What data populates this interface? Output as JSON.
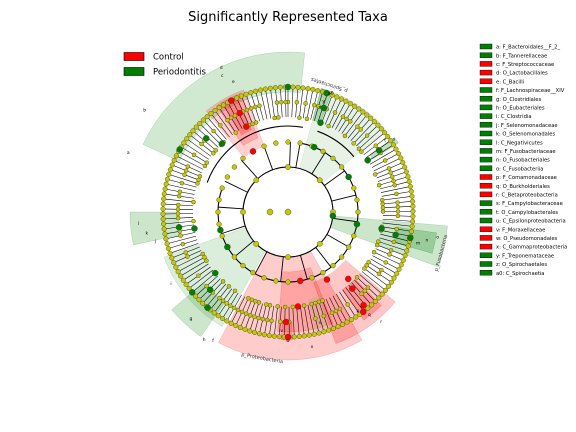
{
  "title": "Significantly Represented Taxa",
  "groups": [
    {
      "name": "Control",
      "color": "#ff0000"
    },
    {
      "name": "Periodontitis",
      "color": "#008000"
    }
  ],
  "chart_data": {
    "type": "cladogram",
    "title": "Significantly Represented Taxa",
    "legend": [
      "Control",
      "Periodontitis"
    ],
    "legend_placement": "top-left",
    "key_placement": "right",
    "taxa": [
      {
        "letter": "a",
        "label": "a: F_Bacteroidales__F_2_",
        "group": "Periodontitis"
      },
      {
        "letter": "b",
        "label": "b: F_Tannerellaceae",
        "group": "Periodontitis"
      },
      {
        "letter": "c",
        "label": "c: F_Streptococcaceae",
        "group": "Control"
      },
      {
        "letter": "d",
        "label": "d: O_Lactobacillales",
        "group": "Control"
      },
      {
        "letter": "e",
        "label": "e: C_Bacilli",
        "group": "Control"
      },
      {
        "letter": "f",
        "label": "f: F_Lachnospiraceae__XIV",
        "group": "Periodontitis"
      },
      {
        "letter": "g",
        "label": "g: O_Clostridiales",
        "group": "Periodontitis"
      },
      {
        "letter": "h",
        "label": "h: O_Eubacteriales",
        "group": "Periodontitis"
      },
      {
        "letter": "i",
        "label": "i: C_Clostridia",
        "group": "Periodontitis"
      },
      {
        "letter": "j",
        "label": "j: F_Selenomonadaceae",
        "group": "Periodontitis"
      },
      {
        "letter": "k",
        "label": "k: O_Selenomonadales",
        "group": "Periodontitis"
      },
      {
        "letter": "l",
        "label": "l: C_Negativicutes",
        "group": "Periodontitis"
      },
      {
        "letter": "m",
        "label": "m: F_Fusobacteriaceae",
        "group": "Periodontitis"
      },
      {
        "letter": "n",
        "label": "n: O_Fusobacteriales",
        "group": "Periodontitis"
      },
      {
        "letter": "o",
        "label": "o: C_Fusobacteriia",
        "group": "Periodontitis"
      },
      {
        "letter": "p",
        "label": "p: F_Comamonadaceae",
        "group": "Control"
      },
      {
        "letter": "q",
        "label": "q: O_Burkholderiales",
        "group": "Control"
      },
      {
        "letter": "r",
        "label": "r: C_Betaproteobacteria",
        "group": "Control"
      },
      {
        "letter": "s",
        "label": "s: F_Campylobacteraceae",
        "group": "Periodontitis"
      },
      {
        "letter": "t",
        "label": "t: O_Campylobacterales",
        "group": "Periodontitis"
      },
      {
        "letter": "u",
        "label": "u: C_Epsilonproteobacteria",
        "group": "Periodontitis"
      },
      {
        "letter": "v",
        "label": "v: F_Moraxellaceae",
        "group": "Control"
      },
      {
        "letter": "w",
        "label": "w: O_Pseudomonadales",
        "group": "Control"
      },
      {
        "letter": "x",
        "label": "x: C_Gammaproteobacteria",
        "group": "Control"
      },
      {
        "letter": "y",
        "label": "y: F_Treponemataceae",
        "group": "Periodontitis"
      },
      {
        "letter": "z",
        "label": "z: O_Spirochaetales",
        "group": "Periodontitis"
      },
      {
        "letter": "a0",
        "label": "a0: C_Spirochaetia",
        "group": "Periodontitis"
      }
    ],
    "phylum_labels": [
      "p_Proteobacteria",
      "p_Spirochaetes",
      "p_Fusobacteria"
    ],
    "colors": {
      "control": "#ff0000",
      "periodontitis": "#008000",
      "neutral_node": "#c8c800"
    }
  }
}
